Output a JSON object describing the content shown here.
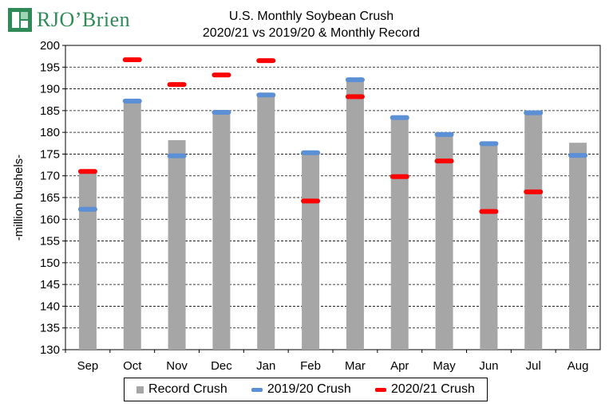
{
  "logo": {
    "text": "RJO’Brien",
    "icon": "rjo-brien-logo-icon",
    "color": "#2e8b57"
  },
  "chart_data": {
    "type": "bar",
    "title": "U.S. Monthly Soybean Crush",
    "subtitle": "2020/21 vs 2019/20 & Monthly Record",
    "ylabel": "-million bushels-",
    "xlabel": "",
    "ylim": [
      130,
      200
    ],
    "ytick_step": 5,
    "grid": true,
    "legend_position": "bottom",
    "categories": [
      "Sep",
      "Oct",
      "Nov",
      "Dec",
      "Jan",
      "Feb",
      "Mar",
      "Apr",
      "May",
      "Jun",
      "Jul",
      "Aug"
    ],
    "series": [
      {
        "name": "Record Crush",
        "kind": "bar",
        "color": "#a6a6a6",
        "values": [
          170.5,
          187.2,
          178.2,
          184.9,
          188.7,
          175.5,
          192.3,
          183.6,
          179.8,
          177.5,
          184.7,
          177.6
        ]
      },
      {
        "name": "2019/20 Crush",
        "kind": "marker",
        "color": "#5b8fd6",
        "values": [
          162.3,
          187.2,
          174.6,
          184.6,
          188.6,
          175.3,
          192.1,
          183.4,
          179.5,
          177.4,
          184.5,
          174.7
        ]
      },
      {
        "name": "2020/21 Crush",
        "kind": "marker",
        "color": "#ff0000",
        "values": [
          171.0,
          196.7,
          191.0,
          193.2,
          196.5,
          164.2,
          188.2,
          169.8,
          173.4,
          161.8,
          166.3,
          null
        ]
      }
    ]
  }
}
